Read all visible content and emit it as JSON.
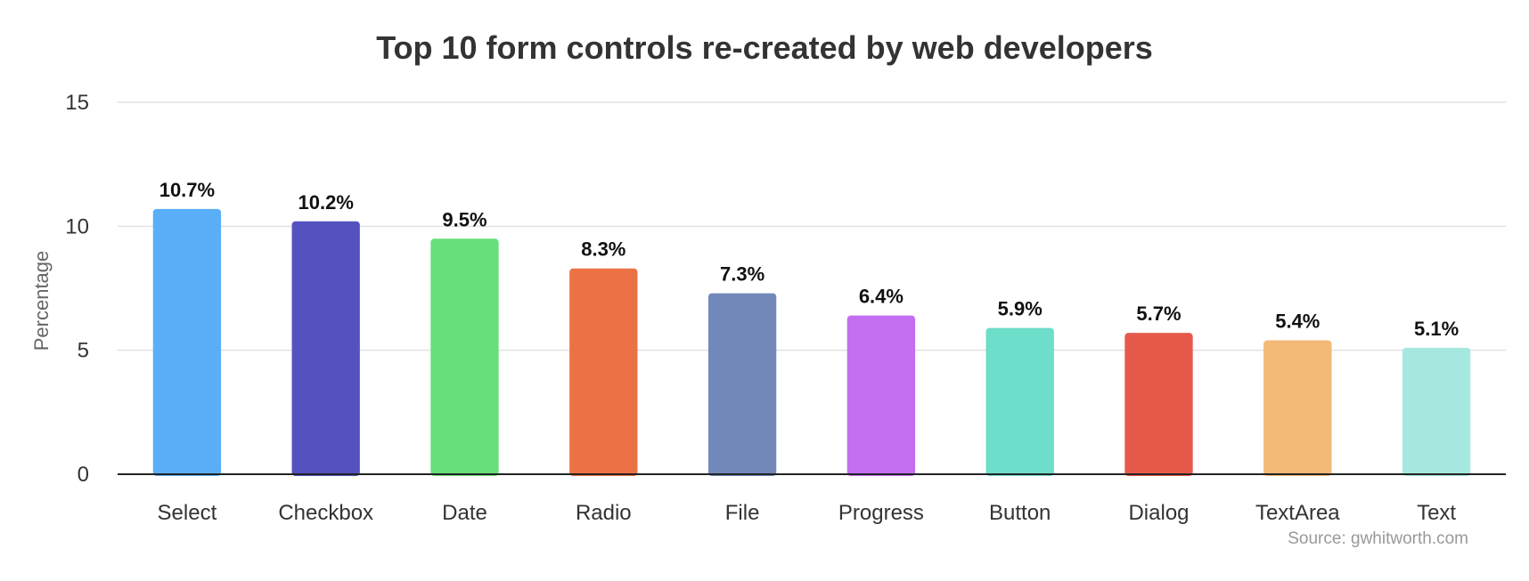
{
  "chart_data": {
    "type": "bar",
    "title": "Top 10 form controls re-created by web developers",
    "xlabel": "",
    "ylabel": "Percentage",
    "ylim": [
      0,
      15
    ],
    "yticks": [
      0,
      5,
      10,
      15
    ],
    "grid": true,
    "categories": [
      "Select",
      "Checkbox",
      "Date",
      "Radio",
      "File",
      "Progress",
      "Button",
      "Dialog",
      "TextArea",
      "Text"
    ],
    "values": [
      10.7,
      10.2,
      9.5,
      8.3,
      7.3,
      6.4,
      5.9,
      5.7,
      5.4,
      5.1
    ],
    "data_labels": [
      "10.7%",
      "10.2%",
      "9.5%",
      "8.3%",
      "7.3%",
      "6.4%",
      "5.9%",
      "5.7%",
      "5.4%",
      "5.1%"
    ],
    "colors": [
      "#5aaef7",
      "#5552c0",
      "#67df7a",
      "#ec7246",
      "#7288b9",
      "#c46ef2",
      "#6cdec9",
      "#e65a4b",
      "#f3b977",
      "#a6e8df"
    ],
    "source": "Source: gwhitworth.com"
  }
}
